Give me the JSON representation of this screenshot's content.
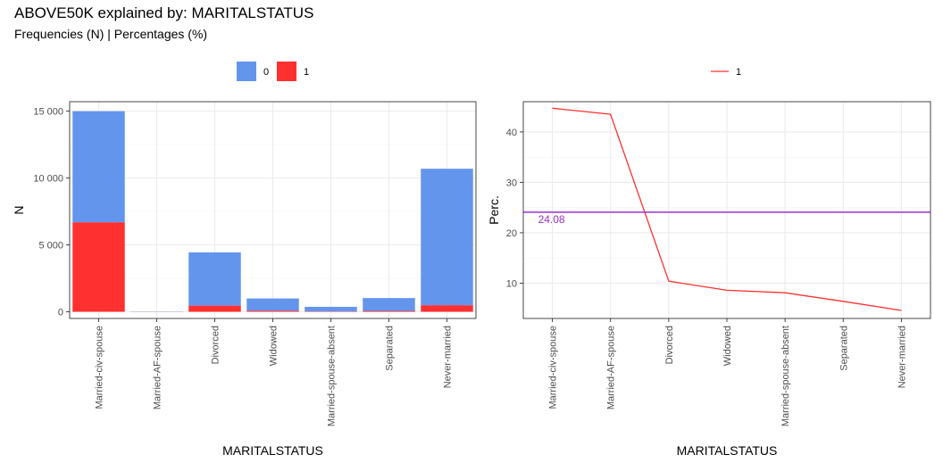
{
  "title": "ABOVE50K explained by: MARITALSTATUS",
  "subtitle": "Frequencies (N) | Percentages (%)",
  "chart_data": [
    {
      "type": "bar",
      "stacked": true,
      "xlabel": "MARITALSTATUS",
      "ylabel": "N",
      "ylim": [
        -500,
        15700
      ],
      "yticks": [
        0,
        5000,
        10000,
        15000
      ],
      "ytick_labels": [
        "0",
        "5 000",
        "10 000",
        "15 000"
      ],
      "categories": [
        "Married-civ-spouse",
        "Married-AF-spouse",
        "Divorced",
        "Widowed",
        "Married-spouse-absent",
        "Separated",
        "Never-married"
      ],
      "legend_position": "top",
      "series": [
        {
          "name": "0",
          "color": "#6495ED",
          "values": [
            8300,
            13,
            3980,
            910,
            340,
            960,
            10200
          ]
        },
        {
          "name": "1",
          "color": "#FF3030",
          "values": [
            6690,
            10,
            460,
            85,
            30,
            65,
            490
          ]
        }
      ],
      "grid": true
    },
    {
      "type": "line",
      "xlabel": "MARITALSTATUS",
      "ylabel": "Perc.",
      "ylim": [
        3,
        46
      ],
      "yticks": [
        10,
        20,
        30,
        40
      ],
      "ytick_labels": [
        "10",
        "20",
        "30",
        "40"
      ],
      "categories": [
        "Married-civ-spouse",
        "Married-AF-spouse",
        "Divorced",
        "Widowed",
        "Married-spouse-absent",
        "Separated",
        "Never-married"
      ],
      "legend_position": "top",
      "series": [
        {
          "name": "1",
          "color": "#FF3030",
          "values": [
            44.7,
            43.5,
            10.4,
            8.6,
            8.1,
            6.4,
            4.6
          ]
        }
      ],
      "reference_line": {
        "value": 24.08,
        "label": "24.08",
        "color": "#9932CC"
      },
      "grid": true
    }
  ]
}
